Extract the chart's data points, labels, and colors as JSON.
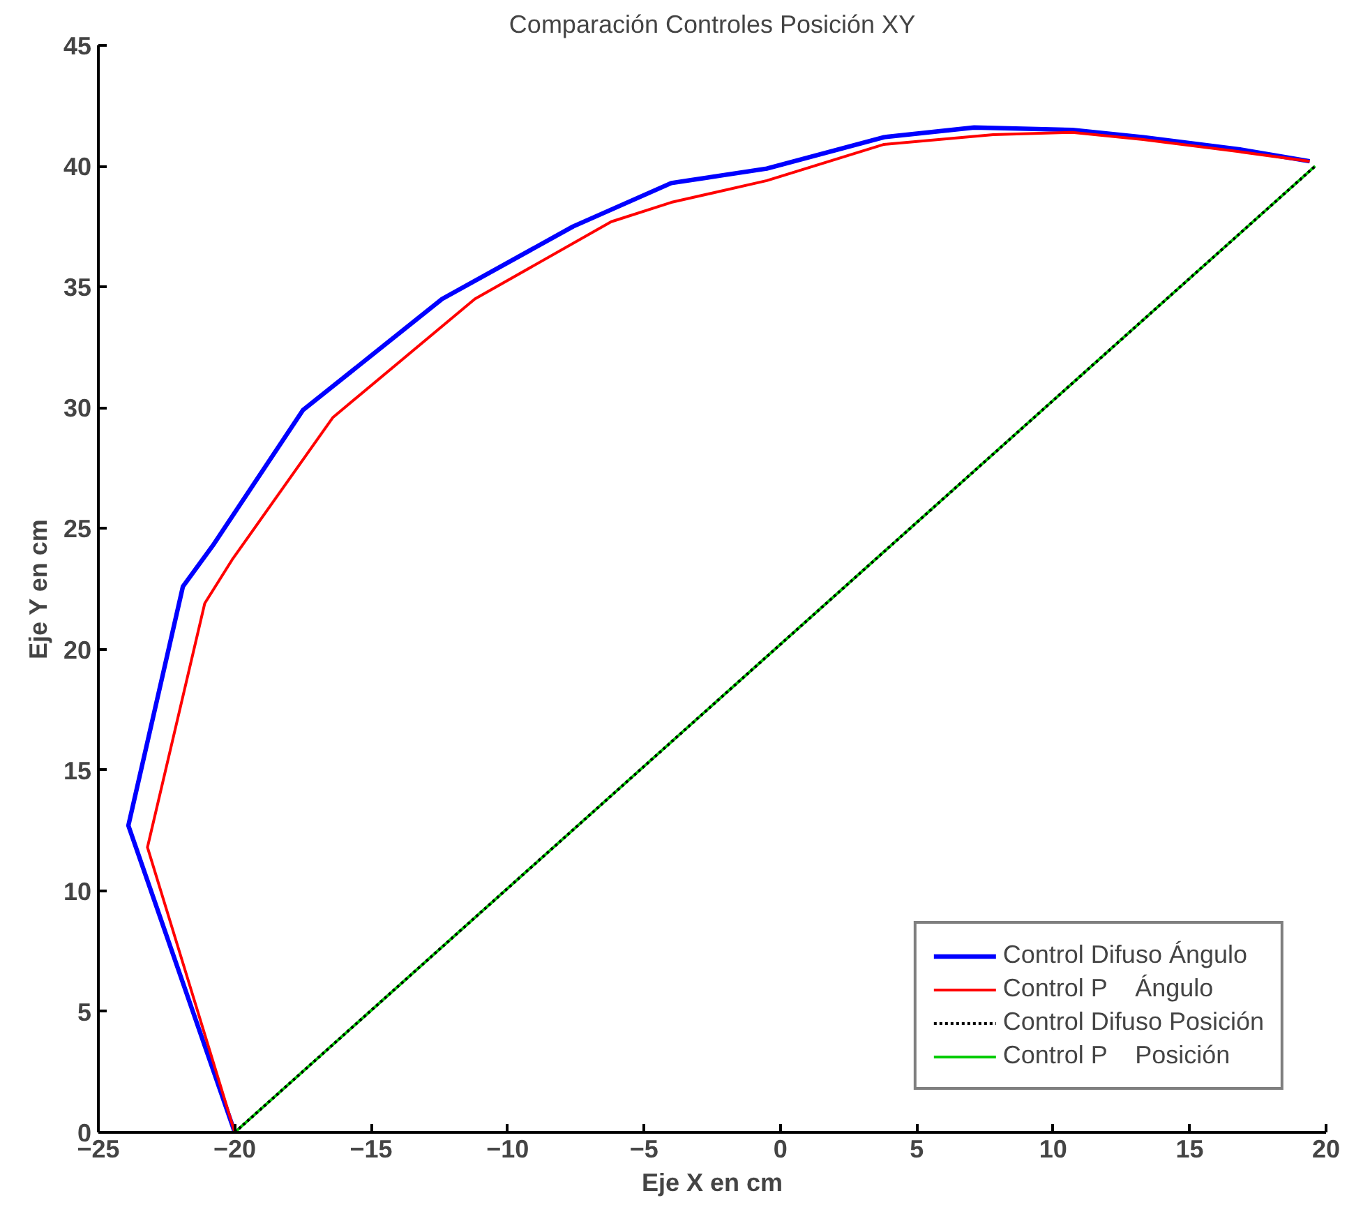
{
  "chart_data": {
    "type": "line",
    "title": "Comparación Controles Posición XY",
    "xlabel": "Eje X en cm",
    "ylabel": "Eje Y en cm",
    "xlim": [
      -25,
      20
    ],
    "ylim": [
      0,
      45
    ],
    "xticks": [
      -25,
      -20,
      -15,
      -10,
      -5,
      0,
      5,
      10,
      15,
      20
    ],
    "yticks": [
      0,
      5,
      10,
      15,
      20,
      25,
      30,
      35,
      40,
      45
    ],
    "grid": false,
    "legend": "bottom right",
    "marker": "none",
    "series": [
      {
        "name": "Control Difuso Ángulo",
        "color": "#0000ff",
        "x": [
          -20,
          -23.9,
          -21.9,
          -20.8,
          -17.5,
          -12.4,
          -7.6,
          -4.0,
          -0.5,
          3.8,
          7.1,
          10.7,
          13.3,
          16.8,
          19.4
        ],
        "values": [
          0,
          12.7,
          22.6,
          24.3,
          29.9,
          34.5,
          37.5,
          39.3,
          39.9,
          41.2,
          41.6,
          41.5,
          41.2,
          40.7,
          40.2
        ]
      },
      {
        "name": "Control P    Ángulo",
        "color": "#ff0000",
        "x": [
          -20,
          -23.2,
          -21.1,
          -20.1,
          -16.4,
          -11.2,
          -6.2,
          -4.0,
          -0.5,
          3.8,
          7.8,
          10.7,
          13.3,
          16.8,
          19.4
        ],
        "values": [
          0,
          11.8,
          21.9,
          23.7,
          29.6,
          34.5,
          37.7,
          38.5,
          39.4,
          40.9,
          41.3,
          41.4,
          41.1,
          40.6,
          40.2
        ]
      },
      {
        "name": "Control Difuso Posición",
        "color": "#000000",
        "line_style": "dotted",
        "x": [
          -20,
          19.6
        ],
        "values": [
          0,
          40
        ]
      },
      {
        "name": "Control P    Posición",
        "color": "#00cc00",
        "x": [
          -20,
          19.6
        ],
        "values": [
          0,
          40
        ]
      }
    ]
  }
}
